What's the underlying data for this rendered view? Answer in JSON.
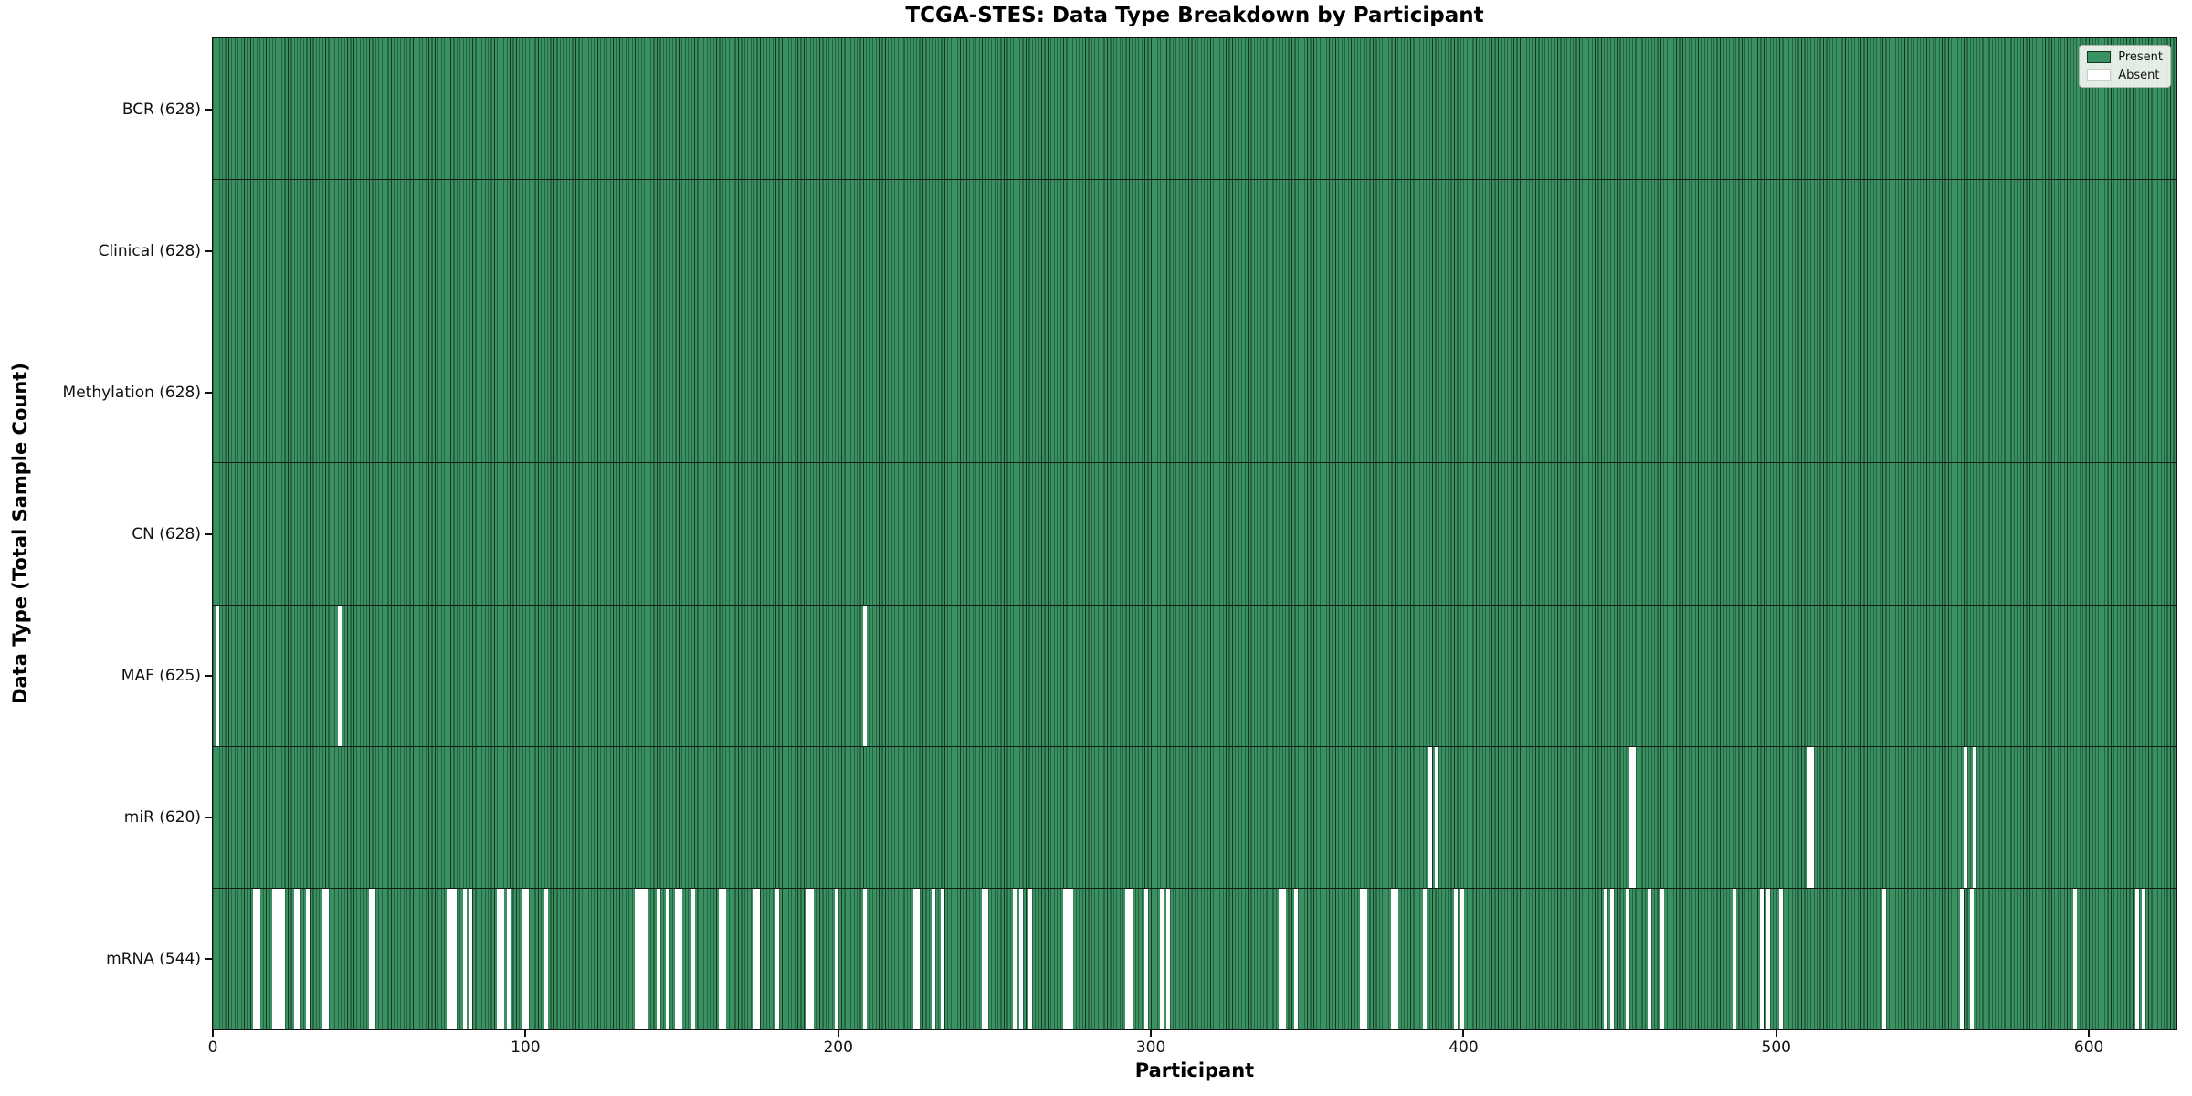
{
  "chart_data": {
    "type": "heatmap",
    "title": "TCGA-STES: Data Type Breakdown by Participant",
    "xlabel": "Participant",
    "ylabel": "Data Type (Total Sample Count)",
    "x_ticks": [
      0,
      100,
      200,
      300,
      400,
      500,
      600
    ],
    "x_range": [
      0,
      628
    ],
    "n_participants": 628,
    "grid": false,
    "legend_position": "upper right",
    "legend_items": [
      {
        "label": "Present",
        "color": "#3a9162"
      },
      {
        "label": "Absent",
        "color": "#ffffff"
      }
    ],
    "colors": {
      "present_fill": "#3a9162",
      "bar_edge": "#173621",
      "absent": "#ffffff",
      "row_separator": "#101c14",
      "axis": "#111111"
    },
    "rows": [
      {
        "data_type": "BCR",
        "label": "BCR (628)",
        "present_count": 628,
        "absent_participants": []
      },
      {
        "data_type": "Clinical",
        "label": "Clinical (628)",
        "present_count": 628,
        "absent_participants": []
      },
      {
        "data_type": "Methylation",
        "label": "Methylation (628)",
        "present_count": 628,
        "absent_participants": []
      },
      {
        "data_type": "CN",
        "label": "CN (628)",
        "present_count": 628,
        "absent_participants": []
      },
      {
        "data_type": "MAF",
        "label": "MAF (625)",
        "present_count": 625,
        "absent_participants": [
          1,
          40,
          208
        ]
      },
      {
        "data_type": "miR",
        "label": "miR (620)",
        "present_count": 620,
        "absent_participants": [
          389,
          391,
          453,
          454,
          510,
          511,
          560,
          563
        ]
      },
      {
        "data_type": "mRNA",
        "label": "mRNA (544)",
        "present_count": 544,
        "absent_participants": [
          13,
          14,
          19,
          20,
          21,
          22,
          26,
          27,
          30,
          35,
          36,
          50,
          51,
          75,
          76,
          77,
          80,
          82,
          91,
          92,
          94,
          99,
          100,
          106,
          135,
          136,
          137,
          138,
          142,
          145,
          148,
          149,
          153,
          162,
          163,
          173,
          174,
          180,
          190,
          191,
          199,
          208,
          224,
          225,
          230,
          233,
          246,
          247,
          256,
          258,
          261,
          272,
          273,
          274,
          292,
          293,
          298,
          303,
          305,
          341,
          342,
          346,
          367,
          368,
          377,
          378,
          387,
          397,
          399,
          445,
          447,
          452,
          459,
          463,
          486,
          495,
          497,
          501,
          534,
          559,
          562,
          595,
          615,
          617
        ]
      }
    ]
  }
}
